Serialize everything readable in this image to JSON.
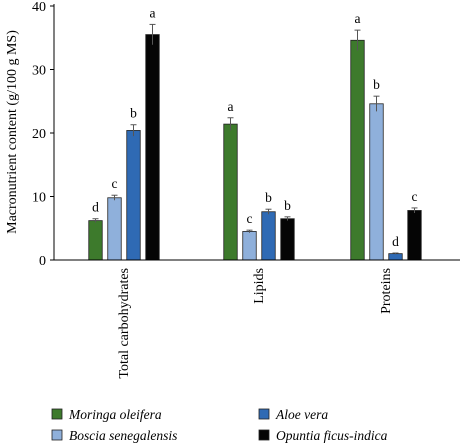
{
  "chart_data": {
    "type": "bar",
    "ylabel": "Macronutrient content (g/100 g MS)",
    "xlabel": "",
    "title": "",
    "ylim": [
      0,
      40
    ],
    "yticks": [
      0,
      10,
      20,
      30,
      40
    ],
    "grid": false,
    "legend_position": "bottom",
    "categories": [
      "Total carbohydrates",
      "Lipids",
      "Proteins"
    ],
    "series": [
      {
        "name": "Moringa oleifera",
        "color": "#3d7a2c",
        "values": [
          6.2,
          21.4,
          34.6
        ],
        "errors": [
          0.3,
          1.0,
          1.6
        ],
        "letters": [
          "d",
          "a",
          "a"
        ]
      },
      {
        "name": "Boscia senegalensis",
        "color": "#8fb0db",
        "values": [
          9.8,
          4.5,
          24.6
        ],
        "errors": [
          0.4,
          0.2,
          1.2
        ],
        "letters": [
          "c",
          "c",
          "b"
        ]
      },
      {
        "name": "Aloe vera",
        "color": "#2f6ab4",
        "values": [
          20.4,
          7.6,
          1.0
        ],
        "errors": [
          0.9,
          0.4,
          0.1
        ],
        "letters": [
          "b",
          "b",
          "d"
        ]
      },
      {
        "name": "Opuntia ficus-indica",
        "color": "#050505",
        "values": [
          35.5,
          6.5,
          7.8
        ],
        "errors": [
          1.6,
          0.3,
          0.4
        ],
        "letters": [
          "a",
          "b",
          "c"
        ]
      }
    ]
  }
}
